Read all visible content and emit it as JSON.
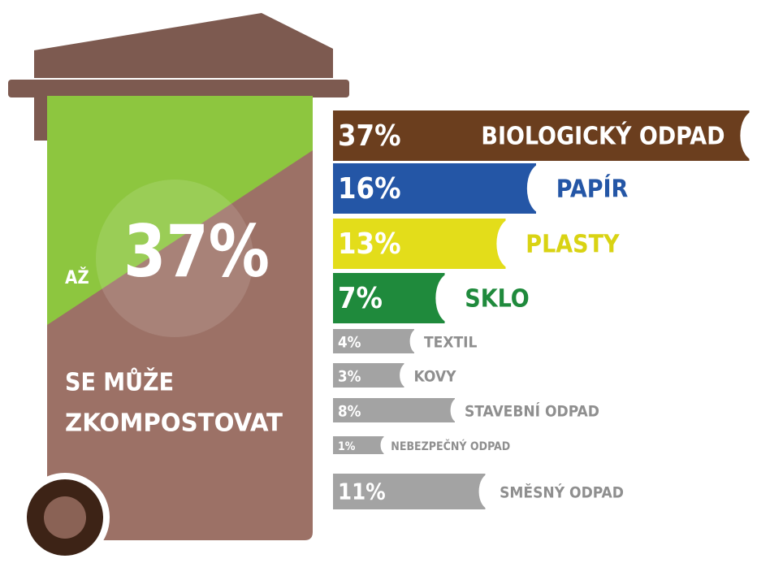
{
  "chart_data": {
    "type": "bar",
    "annotations": [
      "AŽ",
      "37%",
      "SE MŮŽE",
      "ZKOMPOSTOVAT"
    ],
    "categories": [
      "BIOLOGICKÝ ODPAD",
      "PAPÍR",
      "PLASTY",
      "SKLO",
      "TEXTIL",
      "KOVY",
      "STAVEBNÍ ODPAD",
      "NEBEZPEČNÝ ODPAD",
      "SMĚSNÝ ODPAD"
    ],
    "values": [
      37,
      16,
      13,
      7,
      4,
      3,
      8,
      1,
      11
    ],
    "value_labels": [
      "37%",
      "16%",
      "13%",
      "7%",
      "4%",
      "3%",
      "8%",
      "1%",
      "11%"
    ],
    "colors": [
      "#6b3e1e",
      "#2456a6",
      "#e3dd1a",
      "#1f8a3c",
      "#a3a3a3",
      "#a3a3a3",
      "#a3a3a3",
      "#a3a3a3",
      "#a3a3a3"
    ]
  }
}
